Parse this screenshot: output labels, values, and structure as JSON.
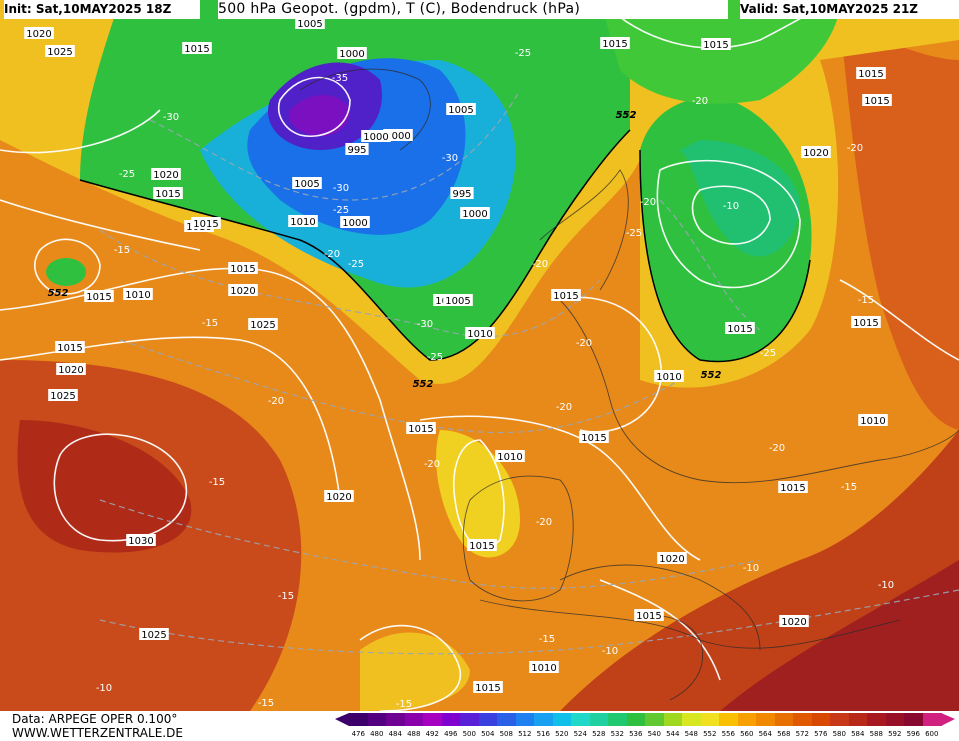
{
  "header": {
    "init": "Init: Sat,10MAY2025 18Z",
    "title": "500 hPa Geopot. (gpdm), T (C), Bodendruck (hPa)",
    "valid": "Valid: Sat,10MAY2025 21Z"
  },
  "footer": {
    "data_source": "Data: ARPEGE OPER 0.100°",
    "website": "WWW.WETTERZENTRALE.DE"
  },
  "scale": {
    "ticks": [
      "476",
      "480",
      "484",
      "488",
      "492",
      "496",
      "500",
      "504",
      "508",
      "512",
      "516",
      "520",
      "524",
      "528",
      "532",
      "536",
      "540",
      "544",
      "548",
      "552",
      "556",
      "560",
      "564",
      "568",
      "572",
      "576",
      "580",
      "584",
      "588",
      "592",
      "596",
      "600"
    ],
    "colors": [
      "#3d006b",
      "#52007f",
      "#6e0094",
      "#8a00aa",
      "#a600c0",
      "#8000d0",
      "#5a20d8",
      "#3a40e0",
      "#2a60e8",
      "#2080f0",
      "#1aa0f0",
      "#10c0e8",
      "#20d8c8",
      "#20d0a0",
      "#20c870",
      "#30c040",
      "#60c830",
      "#a0d820",
      "#d8e820",
      "#f0e020",
      "#f8c000",
      "#f8a000",
      "#f08800",
      "#e87000",
      "#e05800",
      "#d84800",
      "#c83818",
      "#b82818",
      "#a81820",
      "#981028",
      "#880830",
      "#d02080"
    ]
  },
  "map_labels": {
    "pressure": [
      "1005",
      "1000",
      "1000",
      "1005",
      "995",
      "1000",
      "1005",
      "1005",
      "1010",
      "1010",
      "1000",
      "995",
      "1000",
      "1005",
      "1010",
      "1015",
      "1020",
      "1025",
      "1020",
      "1015",
      "1010",
      "1015",
      "1020",
      "1025",
      "1015",
      "1020",
      "1025",
      "1030",
      "1025",
      "1020",
      "1015",
      "1010",
      "1015",
      "1015",
      "1010",
      "1015",
      "1020",
      "1015",
      "1010",
      "1015",
      "1020",
      "1015",
      "1015",
      "1015",
      "1015",
      "1020",
      "1015",
      "1010",
      "1015",
      "1015",
      "1015",
      "1015"
    ],
    "temperature": [
      "-35",
      "-30",
      "-30",
      "-25",
      "-25",
      "-25",
      "-25",
      "-20",
      "-20",
      "-20",
      "-15",
      "-15",
      "-15",
      "-15",
      "-20",
      "-20",
      "-20",
      "-20",
      "-25",
      "-30",
      "-25",
      "-25",
      "-20",
      "-20",
      "-30",
      "-15",
      "-15",
      "-10",
      "-10",
      "-10",
      "-15",
      "-15",
      "-10",
      "-15",
      "-10",
      "-20",
      "-20"
    ],
    "height": [
      "552",
      "552",
      "552",
      "552",
      "552"
    ]
  }
}
